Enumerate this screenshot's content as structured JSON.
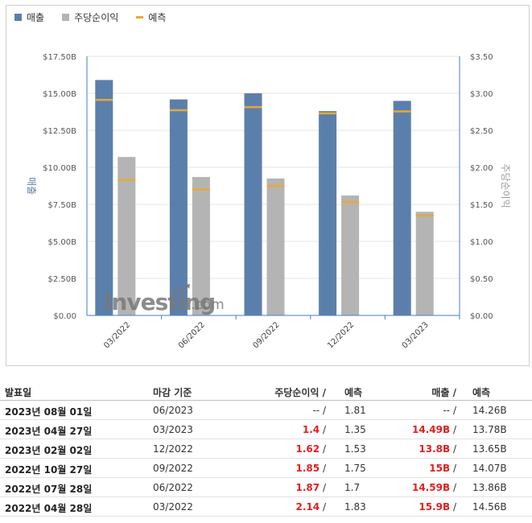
{
  "legend": [
    {
      "label": "매출",
      "color": "#5b7fab",
      "kind": "box"
    },
    {
      "label": "주당순이익",
      "color": "#b4b4b4",
      "kind": "box"
    },
    {
      "label": "예측",
      "color": "#e8a935",
      "kind": "line"
    }
  ],
  "chart_data": {
    "type": "bar",
    "categories": [
      "03/2022",
      "06/2022",
      "09/2022",
      "12/2022",
      "03/2023"
    ],
    "series": [
      {
        "name": "매출",
        "axis": "left",
        "color": "#5b7fab",
        "values": [
          15.9,
          14.59,
          15.0,
          13.8,
          14.49
        ],
        "forecast": [
          14.56,
          13.86,
          14.07,
          13.65,
          13.78
        ]
      },
      {
        "name": "주당순이익",
        "axis": "right",
        "color": "#b4b4b4",
        "values": [
          2.14,
          1.87,
          1.85,
          1.62,
          1.4
        ],
        "forecast": [
          1.83,
          1.7,
          1.75,
          1.53,
          1.35
        ]
      }
    ],
    "forecast_color": "#e8a935",
    "ylabel_left": "매출",
    "ylabel_right": "주당순이익",
    "ylim_left": [
      0,
      17.5
    ],
    "ylim_right": [
      0,
      3.5
    ],
    "yticks_left": [
      "$0.00",
      "$2.50B",
      "$5.00B",
      "$7.50B",
      "$10.00B",
      "$12.50B",
      "$15.00B",
      "$17.50B"
    ],
    "yticks_right": [
      "$0.00",
      "$0.50",
      "$1.00",
      "$1.50",
      "$2.00",
      "$2.50",
      "$3.00",
      "$3.50"
    ],
    "grid": true
  },
  "watermark": {
    "brand": "Investing",
    "suffix": ".com"
  },
  "table": {
    "headers": {
      "date": "발표일",
      "period": "마감 기준",
      "eps": "주당순이익",
      "eps_forecast": "예측",
      "revenue": "매출",
      "revenue_forecast": "예측",
      "slash": "/"
    },
    "rows": [
      {
        "date": "2023년 08월 01일",
        "period": "06/2023",
        "eps": "--",
        "eps_forecast": "1.81",
        "revenue": "--",
        "revenue_forecast": "14.26B",
        "highlight": false
      },
      {
        "date": "2023년 04월 27일",
        "period": "03/2023",
        "eps": "1.4",
        "eps_forecast": "1.35",
        "revenue": "14.49B",
        "revenue_forecast": "13.78B",
        "highlight": true
      },
      {
        "date": "2023년 02월 02일",
        "period": "12/2022",
        "eps": "1.62",
        "eps_forecast": "1.53",
        "revenue": "13.8B",
        "revenue_forecast": "13.65B",
        "highlight": true
      },
      {
        "date": "2022년 10월 27일",
        "period": "09/2022",
        "eps": "1.85",
        "eps_forecast": "1.75",
        "revenue": "15B",
        "revenue_forecast": "14.07B",
        "highlight": true
      },
      {
        "date": "2022년 07월 28일",
        "period": "06/2022",
        "eps": "1.87",
        "eps_forecast": "1.7",
        "revenue": "14.59B",
        "revenue_forecast": "13.86B",
        "highlight": true
      },
      {
        "date": "2022년 04월 28일",
        "period": "03/2022",
        "eps": "2.14",
        "eps_forecast": "1.83",
        "revenue": "15.9B",
        "revenue_forecast": "14.56B",
        "highlight": true
      }
    ]
  }
}
